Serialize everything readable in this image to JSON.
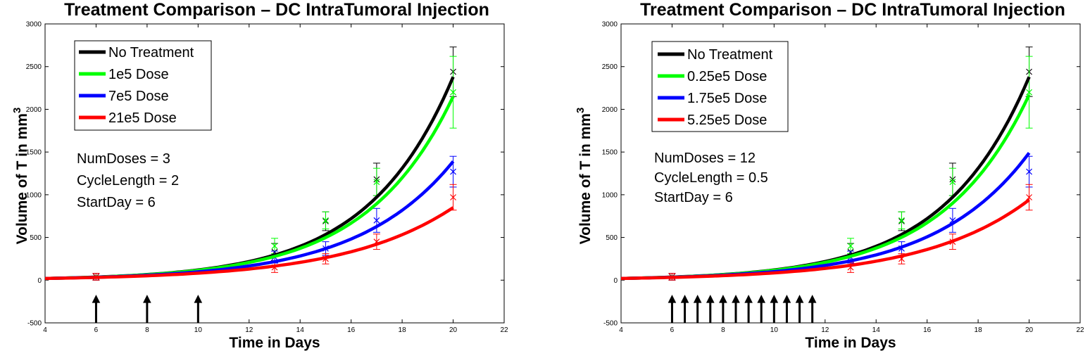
{
  "chart_data": [
    {
      "type": "line",
      "title": "Treatment Comparison – DC IntraTumoral Injection",
      "xlabel": "Time in Days",
      "ylabel": "Volume of T in mm",
      "ylabel_superscript": "3",
      "xlim": [
        4,
        22
      ],
      "ylim": [
        -500,
        3000
      ],
      "xticks": [
        4,
        6,
        8,
        10,
        12,
        14,
        16,
        18,
        20,
        22
      ],
      "yticks": [
        -500,
        0,
        500,
        1000,
        1500,
        2000,
        2500,
        3000
      ],
      "legend": [
        {
          "label": "No Treatment",
          "color": "#000000"
        },
        {
          "label": "1e5 Dose",
          "color": "#00ff00"
        },
        {
          "label": "7e5 Dose",
          "color": "#0000ff"
        },
        {
          "label": "21e5 Dose",
          "color": "#ff0000"
        }
      ],
      "legend_position": "top-left",
      "parameters": [
        "NumDoses = 3",
        "CycleLength = 2",
        "StartDay = 6"
      ],
      "series": [
        {
          "name": "No Treatment",
          "color": "#000000",
          "start": 20,
          "end": 2380
        },
        {
          "name": "1e5 Dose",
          "color": "#00ff00",
          "start": 20,
          "end": 2150
        },
        {
          "name": "7e5 Dose",
          "color": "#0000ff",
          "start": 20,
          "end": 1390
        },
        {
          "name": "21e5 Dose",
          "color": "#ff0000",
          "start": 20,
          "end": 850
        }
      ],
      "observations": [
        {
          "color": "#000000",
          "points": [
            {
              "x": 6,
              "y": 40,
              "err": 40
            },
            {
              "x": 13,
              "y": 330,
              "err": 100
            },
            {
              "x": 15,
              "y": 690,
              "err": 110
            },
            {
              "x": 17,
              "y": 1180,
              "err": 190
            },
            {
              "x": 20,
              "y": 2440,
              "err": 290
            }
          ]
        },
        {
          "color": "#00ff00",
          "points": [
            {
              "x": 6,
              "y": 40,
              "err": 40
            },
            {
              "x": 13,
              "y": 400,
              "err": 90
            },
            {
              "x": 15,
              "y": 700,
              "err": 100
            },
            {
              "x": 17,
              "y": 1150,
              "err": 160
            },
            {
              "x": 20,
              "y": 2200,
              "err": 420
            }
          ]
        },
        {
          "color": "#0000ff",
          "points": [
            {
              "x": 6,
              "y": 40,
              "err": 40
            },
            {
              "x": 13,
              "y": 270,
              "err": 70
            },
            {
              "x": 15,
              "y": 370,
              "err": 80
            },
            {
              "x": 17,
              "y": 700,
              "err": 140
            },
            {
              "x": 20,
              "y": 1270,
              "err": 180
            }
          ]
        },
        {
          "color": "#ff0000",
          "points": [
            {
              "x": 6,
              "y": 40,
              "err": 40
            },
            {
              "x": 13,
              "y": 150,
              "err": 60
            },
            {
              "x": 15,
              "y": 250,
              "err": 60
            },
            {
              "x": 17,
              "y": 450,
              "err": 90
            },
            {
              "x": 20,
              "y": 970,
              "err": 150
            }
          ]
        }
      ],
      "dose_days": [
        6,
        8,
        10
      ],
      "dose_arrow": {
        "from": -500,
        "to": -180
      }
    },
    {
      "type": "line",
      "title": "Treatment Comparison – DC IntraTumoral Injection",
      "xlabel": "Time in Days",
      "ylabel": "Volume of T in mm",
      "ylabel_superscript": "3",
      "xlim": [
        4,
        22
      ],
      "ylim": [
        -500,
        3000
      ],
      "xticks": [
        4,
        6,
        8,
        10,
        12,
        14,
        16,
        18,
        20,
        22
      ],
      "yticks": [
        -500,
        0,
        500,
        1000,
        1500,
        2000,
        2500,
        3000
      ],
      "legend": [
        {
          "label": "No Treatment",
          "color": "#000000"
        },
        {
          "label": "0.25e5 Dose",
          "color": "#00ff00"
        },
        {
          "label": "1.75e5 Dose",
          "color": "#0000ff"
        },
        {
          "label": "5.25e5 Dose",
          "color": "#ff0000"
        }
      ],
      "legend_position": "top-left",
      "parameters": [
        "NumDoses = 12",
        "CycleLength = 0.5",
        "StartDay = 6"
      ],
      "series": [
        {
          "name": "No Treatment",
          "color": "#000000",
          "start": 20,
          "end": 2380
        },
        {
          "name": "0.25e5 Dose",
          "color": "#00ff00",
          "start": 20,
          "end": 2170
        },
        {
          "name": "1.75e5 Dose",
          "color": "#0000ff",
          "start": 20,
          "end": 1490
        },
        {
          "name": "5.25e5 Dose",
          "color": "#ff0000",
          "start": 20,
          "end": 940
        }
      ],
      "observations": [
        {
          "color": "#000000",
          "points": [
            {
              "x": 6,
              "y": 40,
              "err": 40
            },
            {
              "x": 13,
              "y": 330,
              "err": 100
            },
            {
              "x": 15,
              "y": 690,
              "err": 110
            },
            {
              "x": 17,
              "y": 1180,
              "err": 190
            },
            {
              "x": 20,
              "y": 2440,
              "err": 290
            }
          ]
        },
        {
          "color": "#00ff00",
          "points": [
            {
              "x": 6,
              "y": 40,
              "err": 40
            },
            {
              "x": 13,
              "y": 400,
              "err": 90
            },
            {
              "x": 15,
              "y": 700,
              "err": 100
            },
            {
              "x": 17,
              "y": 1150,
              "err": 160
            },
            {
              "x": 20,
              "y": 2200,
              "err": 420
            }
          ]
        },
        {
          "color": "#0000ff",
          "points": [
            {
              "x": 6,
              "y": 40,
              "err": 40
            },
            {
              "x": 13,
              "y": 270,
              "err": 70
            },
            {
              "x": 15,
              "y": 370,
              "err": 80
            },
            {
              "x": 17,
              "y": 700,
              "err": 140
            },
            {
              "x": 20,
              "y": 1270,
              "err": 180
            }
          ]
        },
        {
          "color": "#ff0000",
          "points": [
            {
              "x": 6,
              "y": 40,
              "err": 40
            },
            {
              "x": 13,
              "y": 150,
              "err": 60
            },
            {
              "x": 15,
              "y": 250,
              "err": 60
            },
            {
              "x": 17,
              "y": 450,
              "err": 90
            },
            {
              "x": 20,
              "y": 970,
              "err": 150
            }
          ]
        }
      ],
      "dose_days": [
        6,
        6.5,
        7,
        7.5,
        8,
        8.5,
        9,
        9.5,
        10,
        10.5,
        11,
        11.5
      ],
      "dose_arrow": {
        "from": -500,
        "to": -180
      }
    }
  ]
}
